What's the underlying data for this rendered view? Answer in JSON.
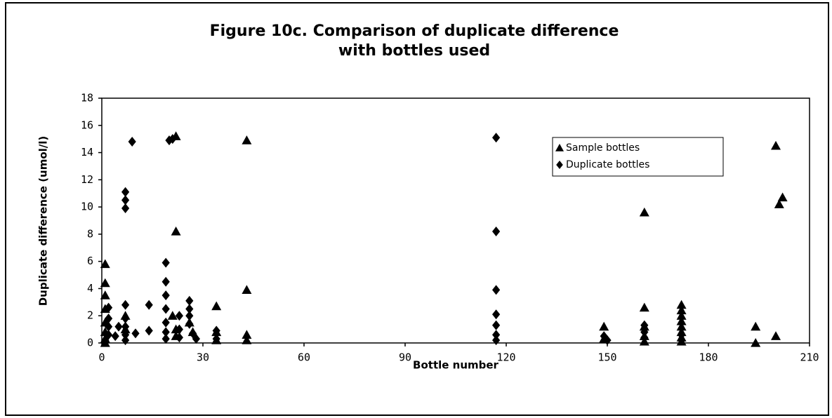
{
  "chart_data": {
    "type": "scatter",
    "title": "Figure 10c. Comparison of duplicate difference",
    "subtitle": "with bottles used",
    "x_label": "Bottle number",
    "y_label": "Duplicate difference (umol/l)",
    "xlim": [
      0,
      210
    ],
    "xticks": [
      0,
      30,
      60,
      90,
      120,
      150,
      180,
      210
    ],
    "ylim": [
      0,
      18
    ],
    "yticks": [
      0,
      2,
      4,
      6,
      8,
      10,
      12,
      14,
      16,
      18
    ],
    "grid": false,
    "legend": "upper right",
    "series": [
      {
        "name": "Sample bottles",
        "color": "#000000",
        "marker": "triangle",
        "x": [
          1,
          1,
          1,
          1,
          1,
          1,
          1,
          1,
          22,
          22,
          21,
          22,
          22,
          43,
          43,
          43,
          43,
          34,
          34,
          34,
          7,
          7,
          26,
          27,
          149,
          149,
          161,
          161,
          161,
          161,
          161,
          172,
          172,
          172,
          172,
          172,
          172,
          172,
          172,
          194,
          194,
          200,
          201,
          202,
          200
        ],
        "values": [
          5.8,
          4.4,
          3.5,
          2.5,
          1.5,
          0.8,
          0.3,
          0,
          15.2,
          8.2,
          2.0,
          1.0,
          0.5,
          14.9,
          3.9,
          0.6,
          0.2,
          2.7,
          0.8,
          0.2,
          2,
          1,
          1.5,
          0.8,
          1.2,
          0.3,
          9.6,
          2.6,
          1.2,
          0.5,
          0.1,
          2.8,
          2.4,
          2.0,
          1.6,
          1.2,
          0.8,
          0.4,
          0.1,
          1.2,
          0,
          14.5,
          10.2,
          10.7,
          0.5
        ]
      },
      {
        "name": "Duplicate bottles",
        "color": "#000000",
        "marker": "diamond",
        "x": [
          9,
          20,
          21,
          117,
          117,
          117,
          117,
          117,
          117,
          117,
          7,
          7,
          7,
          7,
          7,
          7,
          7,
          7,
          14,
          14,
          19,
          19,
          19,
          19,
          19,
          19,
          19,
          23,
          23,
          23,
          26,
          26,
          26,
          26,
          27,
          28,
          2,
          2,
          2,
          2,
          1,
          4,
          5,
          34,
          34,
          10,
          161,
          161,
          161,
          149,
          150,
          172,
          172
        ],
        "values": [
          14.8,
          14.9,
          15.0,
          15.1,
          8.2,
          3.9,
          2.1,
          1.3,
          0.6,
          0.2,
          11.1,
          10.5,
          9.9,
          2.8,
          1.8,
          1.2,
          0.6,
          0.2,
          2.8,
          0.9,
          5.9,
          4.5,
          3.5,
          2.5,
          1.5,
          0.8,
          0.3,
          2,
          1,
          0.4,
          3.1,
          2.5,
          2.0,
          1.4,
          0.7,
          0.3,
          2.6,
          1.8,
          1.2,
          0.6,
          0.2,
          0.5,
          1.2,
          0.9,
          0.3,
          0.7,
          1.3,
          0.8,
          0.4,
          0.5,
          0.2,
          0.6,
          0.2
        ]
      }
    ]
  }
}
